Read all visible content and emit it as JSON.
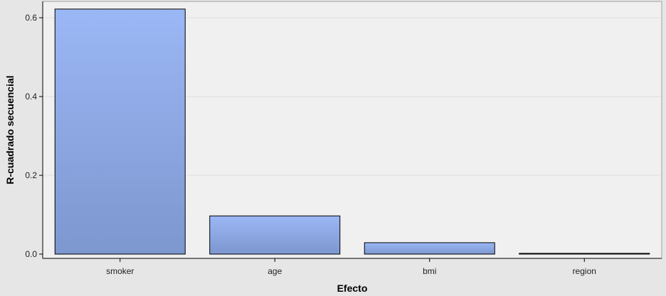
{
  "chart_data": {
    "type": "bar",
    "categories": [
      "smoker",
      "age",
      "bmi",
      "region"
    ],
    "values": [
      0.622,
      0.097,
      0.029,
      0.002
    ],
    "xlabel": "Efecto",
    "ylabel": "R-cuadrado secuencial",
    "ylim": [
      0,
      0.64
    ],
    "yticks": [
      0.0,
      0.2,
      0.4,
      0.6
    ],
    "ytick_labels": [
      "0.0",
      "0.2",
      "0.4",
      "0.6"
    ],
    "grid": true,
    "colors": {
      "bar_top": "#9bb7f5",
      "bar_bottom": "#7d97cf",
      "bar_stroke": "#000000",
      "plot_background": "#f0f0f0",
      "page_background": "#e6e6e6",
      "grid": "#dedede"
    }
  }
}
